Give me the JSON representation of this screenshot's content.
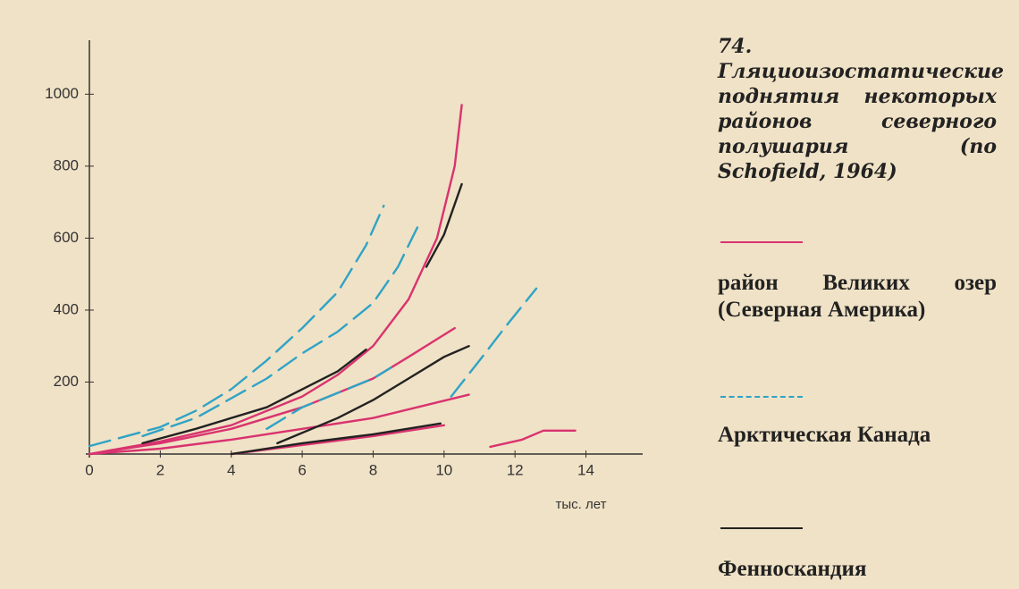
{
  "chart_data": {
    "type": "line",
    "title": "74. Гляциоизостатические поднятия некоторых районов северного полушария (по Schofield, 1964)",
    "x_label": "тыс. лет",
    "xlim": [
      0,
      15.6
    ],
    "ylim": [
      0,
      1150
    ],
    "xticks": [
      0,
      2,
      4,
      6,
      8,
      10,
      12,
      14
    ],
    "yticks": [
      200,
      400,
      600,
      800,
      1000
    ],
    "series": [
      {
        "name": "район Великих озер (Северная Америка)",
        "color": "#d9336f",
        "dash": false,
        "lines": [
          {
            "x": [
              0,
              2,
              4,
              6,
              7,
              8,
              9,
              9.8,
              10.3,
              10.5
            ],
            "values": [
              0,
              35,
              80,
              160,
              220,
              300,
              430,
              600,
              800,
              970
            ]
          },
          {
            "x": [
              0,
              2,
              4,
              6,
              8,
              9,
              10.3
            ],
            "values": [
              0,
              30,
              70,
              130,
              210,
              270,
              350
            ]
          },
          {
            "x": [
              0,
              2,
              4,
              6,
              8,
              10.7
            ],
            "values": [
              0,
              15,
              40,
              70,
              100,
              165
            ]
          },
          {
            "x": [
              4,
              6,
              8,
              10
            ],
            "values": [
              0,
              25,
              50,
              80
            ]
          },
          {
            "x": [
              11.3,
              12.2,
              12.8,
              13.7
            ],
            "values": [
              20,
              40,
              65,
              65
            ]
          }
        ]
      },
      {
        "name": "Арктическая Канада",
        "color": "#2fa3c6",
        "dash": true,
        "lines": [
          {
            "x": [
              0,
              2,
              3,
              4,
              5,
              6,
              7,
              7.8,
              8.3
            ],
            "values": [
              22,
              75,
              120,
              180,
              260,
              350,
              450,
              580,
              690
            ]
          },
          {
            "x": [
              1.5,
              3,
              5,
              6,
              7,
              8,
              8.7,
              9.3
            ],
            "values": [
              50,
              100,
              210,
              280,
              340,
              420,
              520,
              640
            ]
          },
          {
            "x": [
              5,
              6,
              7,
              8,
              8.5
            ],
            "values": [
              70,
              130,
              170,
              210,
              240
            ]
          },
          {
            "x": [
              10.2,
              11,
              11.7,
              12.6
            ],
            "values": [
              160,
              260,
              350,
              460
            ]
          }
        ]
      },
      {
        "name": "Фенноскандия",
        "color": "#222222",
        "dash": false,
        "lines": [
          {
            "x": [
              1.5,
              3,
              5,
              7,
              7.8
            ],
            "values": [
              30,
              70,
              130,
              230,
              290
            ]
          },
          {
            "x": [
              9.5,
              10,
              10.5
            ],
            "values": [
              520,
              610,
              750
            ]
          },
          {
            "x": [
              5.3,
              7,
              8,
              9,
              10,
              10.7
            ],
            "values": [
              30,
              100,
              150,
              210,
              270,
              300
            ]
          },
          {
            "x": [
              4,
              6,
              8,
              9.9
            ],
            "values": [
              0,
              30,
              55,
              85
            ]
          }
        ]
      }
    ]
  }
}
